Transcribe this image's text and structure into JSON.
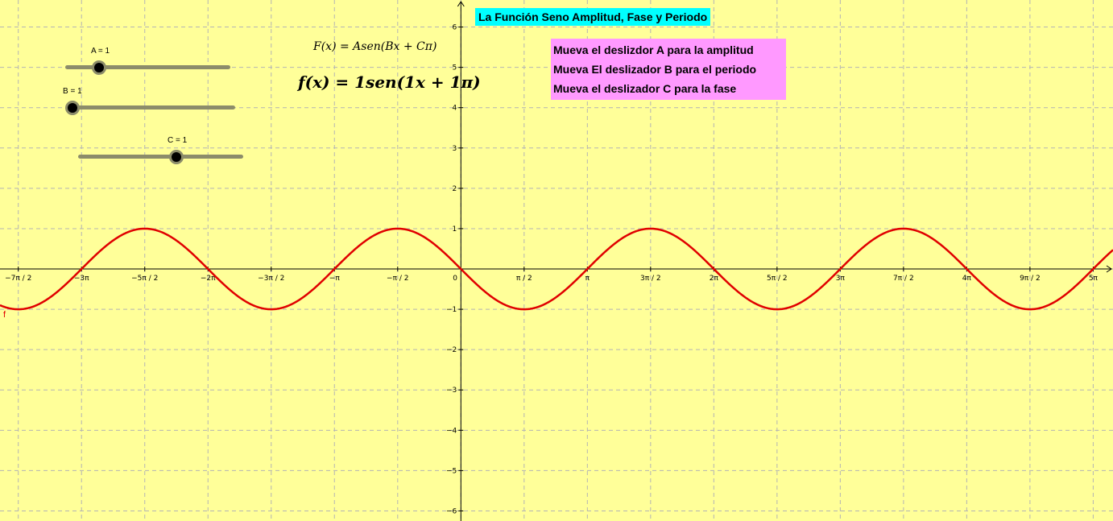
{
  "title": "La Función Seno Amplitud, Fase y Periodo",
  "instructions": [
    "Mueva el deslizdor A para la amplitud",
    "Mueva El deslizador B para el periodo",
    "Mueva el deslizador C para la fase"
  ],
  "formula_general": "F(x) = Asen(Bx + Cπ)",
  "formula_current": "f(x) = 1sen(1x + 1π)",
  "sliders": [
    {
      "name": "A",
      "label": "A = 1",
      "value": 1
    },
    {
      "name": "B",
      "label": "B = 1",
      "value": 1
    },
    {
      "name": "C",
      "label": "C = 1",
      "value": 1
    }
  ],
  "colors": {
    "background": "#ffff99",
    "curve": "#e00000",
    "title_bg": "#00ffff",
    "instructions_bg": "#ff99ff",
    "grid": "#b4b4b4",
    "slider": "#8c8c6a"
  },
  "chart_data": {
    "type": "line",
    "series": [
      {
        "name": "f",
        "function": "1sen(1x + 1π)",
        "amplitude": 1,
        "b": 1,
        "c": 1
      }
    ],
    "xlim": [
      -11.45,
      16.2
    ],
    "ylim": [
      -6.25,
      6.67
    ],
    "x_tick_labels": [
      "−7π / 2",
      "−3π",
      "−5π / 2",
      "−2π",
      "−3π / 2",
      "−π",
      "−π / 2",
      "0",
      "π / 2",
      "π",
      "3π / 2",
      "2π",
      "5π / 2",
      "3π",
      "7π / 2",
      "4π",
      "9π / 2",
      "5π"
    ],
    "y_tick_labels": [
      "−6",
      "−5",
      "−4",
      "−3",
      "−2",
      "−1",
      "1",
      "2",
      "3",
      "4",
      "5",
      "6"
    ],
    "grid": true,
    "curve_label": "f"
  }
}
